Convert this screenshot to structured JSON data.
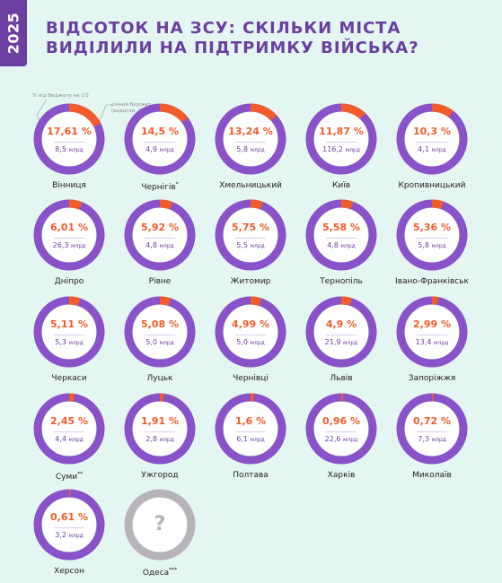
{
  "badge": {
    "year": "2025"
  },
  "title": {
    "line1": "ВІДСОТОК НА ЗСУ: СКІЛЬКИ МІСТА",
    "line2": "ВИДІЛИЛИ НА ПІДТРИМКУ ВІЙСЬКА?"
  },
  "legend": {
    "percent_note": "% від бюджету на СО",
    "budget_note_line1": "річний бюджет",
    "budget_note_line2": "(видатки, ₴)"
  },
  "units": {
    "budget": "млрд"
  },
  "colors": {
    "ring": "#8a52c8",
    "highlight": "#f25c2a",
    "ring_inner": "#ffffff",
    "unknown_ring": "#b8b3b9"
  },
  "chart_data": {
    "type": "donut-grid",
    "unit_percent": "%",
    "cities": [
      {
        "name": "Вінниця",
        "mark": "",
        "percent": 17.61,
        "percent_label": "17,61 %",
        "budget_label": "8,5"
      },
      {
        "name": "Чернігів",
        "mark": "*",
        "percent": 14.5,
        "percent_label": "14,5 %",
        "budget_label": "4,9"
      },
      {
        "name": "Хмельницький",
        "mark": "",
        "percent": 13.24,
        "percent_label": "13,24 %",
        "budget_label": "5,8"
      },
      {
        "name": "Київ",
        "mark": "",
        "percent": 11.87,
        "percent_label": "11,87 %",
        "budget_label": "116,2"
      },
      {
        "name": "Кропивницький",
        "mark": "",
        "percent": 10.3,
        "percent_label": "10,3 %",
        "budget_label": "4,1"
      },
      {
        "name": "Дніпро",
        "mark": "",
        "percent": 6.01,
        "percent_label": "6,01 %",
        "budget_label": "26,3"
      },
      {
        "name": "Рівне",
        "mark": "",
        "percent": 5.92,
        "percent_label": "5,92 %",
        "budget_label": "4,8"
      },
      {
        "name": "Житомир",
        "mark": "",
        "percent": 5.75,
        "percent_label": "5,75 %",
        "budget_label": "5,5"
      },
      {
        "name": "Тернопіль",
        "mark": "",
        "percent": 5.58,
        "percent_label": "5,58 %",
        "budget_label": "4,8"
      },
      {
        "name": "Івано-Франківськ",
        "mark": "",
        "percent": 5.36,
        "percent_label": "5,36 %",
        "budget_label": "5,8"
      },
      {
        "name": "Черкаси",
        "mark": "",
        "percent": 5.11,
        "percent_label": "5,11 %",
        "budget_label": "5,3"
      },
      {
        "name": "Луцьк",
        "mark": "",
        "percent": 5.08,
        "percent_label": "5,08 %",
        "budget_label": "5,0"
      },
      {
        "name": "Чернівці",
        "mark": "",
        "percent": 4.99,
        "percent_label": "4,99 %",
        "budget_label": "5,0"
      },
      {
        "name": "Львів",
        "mark": "",
        "percent": 4.9,
        "percent_label": "4,9 %",
        "budget_label": "21,9"
      },
      {
        "name": "Запоріжжя",
        "mark": "",
        "percent": 2.99,
        "percent_label": "2,99 %",
        "budget_label": "13,4"
      },
      {
        "name": "Суми",
        "mark": "**",
        "percent": 2.45,
        "percent_label": "2,45 %",
        "budget_label": "4,4"
      },
      {
        "name": "Ужгород",
        "mark": "",
        "percent": 1.91,
        "percent_label": "1,91 %",
        "budget_label": "2,8"
      },
      {
        "name": "Полтава",
        "mark": "",
        "percent": 1.6,
        "percent_label": "1,6 %",
        "budget_label": "6,1"
      },
      {
        "name": "Харків",
        "mark": "",
        "percent": 0.96,
        "percent_label": "0,96 %",
        "budget_label": "22,6"
      },
      {
        "name": "Миколаїв",
        "mark": "",
        "percent": 0.72,
        "percent_label": "0,72 %",
        "budget_label": "7,3"
      },
      {
        "name": "Херсон",
        "mark": "",
        "percent": 0.61,
        "percent_label": "0,61 %",
        "budget_label": "3,2"
      },
      {
        "name": "Одеса",
        "mark": "***",
        "percent": null,
        "percent_label": "?",
        "budget_label": ""
      }
    ]
  }
}
